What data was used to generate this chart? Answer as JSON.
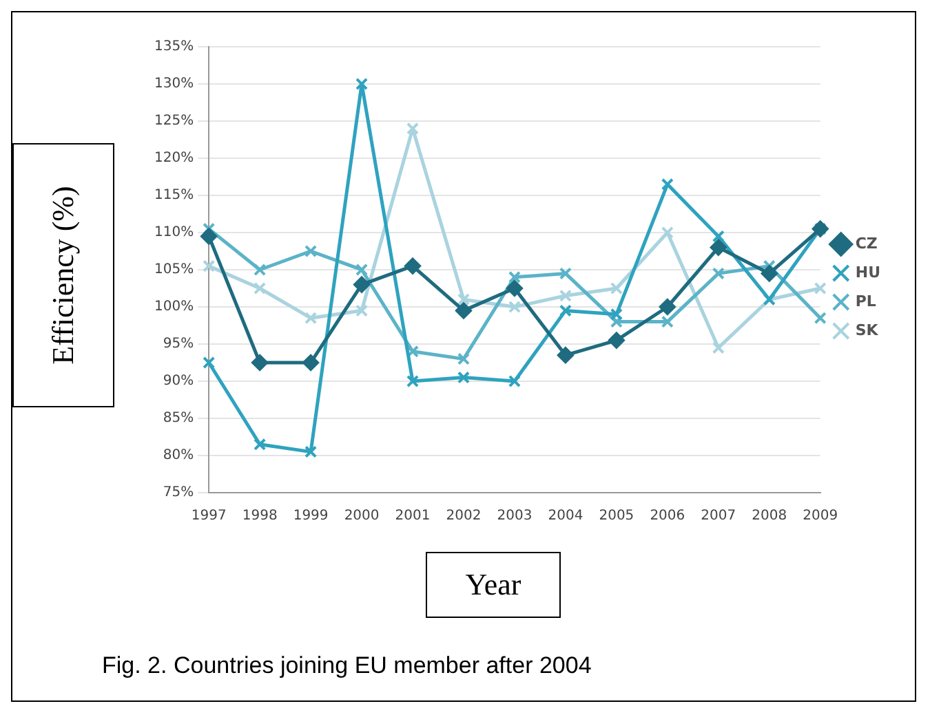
{
  "chart_data": {
    "type": "line",
    "xlabel": "Year",
    "ylabel": "Efficiency (%)",
    "annotations": [
      "Fig. 2. Countries joining EU member after 2004"
    ],
    "categories": [
      "1997",
      "1998",
      "1999",
      "2000",
      "2001",
      "2002",
      "2003",
      "2004",
      "2005",
      "2006",
      "2007",
      "2008",
      "2009"
    ],
    "series": [
      {
        "name": "CZ",
        "color": "#1f6b80",
        "marker": "diamond",
        "values": [
          109.5,
          92.5,
          92.5,
          103,
          105.5,
          99.5,
          102.5,
          93.5,
          95.5,
          100,
          108,
          104.5,
          110.5
        ]
      },
      {
        "name": "HU",
        "color": "#2ea3bf",
        "marker": "cross",
        "values": [
          92.5,
          81.5,
          80.5,
          130,
          90,
          90.5,
          90,
          99.5,
          99,
          116.5,
          109.5,
          101,
          110.5
        ]
      },
      {
        "name": "PL",
        "color": "#5bb3c8",
        "marker": "cross",
        "values": [
          110.5,
          105,
          107.5,
          105,
          94,
          93,
          104,
          104.5,
          98,
          98,
          104.5,
          105.5,
          98.5
        ]
      },
      {
        "name": "SK",
        "color": "#a9d3df",
        "marker": "cross",
        "values": [
          105.5,
          102.5,
          98.5,
          99.5,
          124,
          101,
          100,
          101.5,
          102.5,
          110,
          94.5,
          101,
          102.5
        ]
      }
    ],
    "ylim": [
      75,
      135
    ],
    "yticks": [
      {
        "value": 75,
        "label": "75%"
      },
      {
        "value": 80,
        "label": "80%"
      },
      {
        "value": 85,
        "label": "85%"
      },
      {
        "value": 90,
        "label": "90%"
      },
      {
        "value": 95,
        "label": "95%"
      },
      {
        "value": 100,
        "label": "100%"
      },
      {
        "value": 105,
        "label": "105%"
      },
      {
        "value": 110,
        "label": "110%"
      },
      {
        "value": 115,
        "label": "115%"
      },
      {
        "value": 120,
        "label": "120%"
      },
      {
        "value": 125,
        "label": "125%"
      },
      {
        "value": 130,
        "label": "130%"
      },
      {
        "value": 135,
        "label": "135%"
      }
    ],
    "grid": "y",
    "legend": "right",
    "line_style": "solid"
  }
}
